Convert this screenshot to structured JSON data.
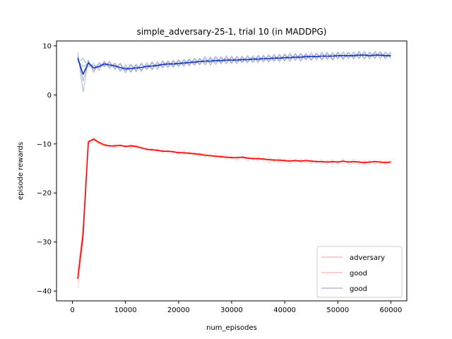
{
  "chart_data": {
    "type": "line",
    "title": "simple_adversary-25-1, trial 10 (in MADDPG)",
    "xlabel": "num_episodes",
    "ylabel": "episode rewards",
    "xlim": [
      -3000,
      63000
    ],
    "ylim": [
      -42,
      11
    ],
    "xticks": [
      0,
      10000,
      20000,
      30000,
      40000,
      50000,
      60000
    ],
    "xtick_labels": [
      "0",
      "10000",
      "20000",
      "30000",
      "40000",
      "50000",
      "60000"
    ],
    "yticks": [
      -40,
      -30,
      -20,
      -10,
      0,
      10
    ],
    "ytick_labels": [
      "−40",
      "−30",
      "−20",
      "−10",
      "0",
      "10"
    ],
    "grid": false,
    "legend_position": "lower right",
    "legend": [
      {
        "label": "adversary",
        "color": "#ff9999"
      },
      {
        "label": "good",
        "color": "#ff9999"
      },
      {
        "label": "good",
        "color": "#8899cc"
      }
    ],
    "x": [
      1000,
      2000,
      3000,
      4000,
      5000,
      6000,
      7000,
      8000,
      9000,
      10000,
      11000,
      12000,
      13000,
      14000,
      15000,
      16000,
      17000,
      18000,
      19000,
      20000,
      21000,
      22000,
      23000,
      24000,
      25000,
      26000,
      27000,
      28000,
      29000,
      30000,
      31000,
      32000,
      33000,
      34000,
      35000,
      36000,
      37000,
      38000,
      39000,
      40000,
      41000,
      42000,
      43000,
      44000,
      45000,
      46000,
      47000,
      48000,
      49000,
      50000,
      51000,
      52000,
      53000,
      54000,
      55000,
      56000,
      57000,
      58000,
      59000,
      60000
    ],
    "series": [
      {
        "group": "adversary",
        "color": "#ff0000",
        "kind": "mean",
        "values": [
          -37.5,
          -28.5,
          -9.6,
          -9.0,
          -9.7,
          -10.2,
          -10.4,
          -10.4,
          -10.3,
          -10.5,
          -10.4,
          -10.5,
          -10.8,
          -11.1,
          -11.2,
          -11.3,
          -11.5,
          -11.5,
          -11.6,
          -11.8,
          -11.8,
          -11.9,
          -12.0,
          -12.1,
          -12.3,
          -12.4,
          -12.5,
          -12.6,
          -12.7,
          -12.8,
          -12.8,
          -12.7,
          -12.9,
          -13.0,
          -13.0,
          -13.1,
          -13.2,
          -13.3,
          -13.3,
          -13.4,
          -13.5,
          -13.4,
          -13.5,
          -13.4,
          -13.5,
          -13.6,
          -13.6,
          -13.7,
          -13.6,
          -13.7,
          -13.5,
          -13.7,
          -13.6,
          -13.7,
          -13.8,
          -13.7,
          -13.6,
          -13.7,
          -13.8,
          -13.7
        ]
      },
      {
        "group": "adversary",
        "color": "#ffaaaa",
        "kind": "run",
        "values": [
          -39.5,
          -30.5,
          -10.0,
          -8.7,
          -9.9,
          -10.6,
          -10.2,
          -10.8,
          -10.6,
          -10.3,
          -10.9,
          -10.2,
          -11.1,
          -10.8,
          -11.6,
          -11.0,
          -11.9,
          -11.3,
          -12.0,
          -11.5,
          -12.2,
          -11.6,
          -12.4,
          -11.8,
          -12.7,
          -12.1,
          -12.9,
          -12.3,
          -13.1,
          -12.5,
          -13.3,
          -12.4,
          -13.4,
          -12.7,
          -13.5,
          -12.8,
          -13.8,
          -13.0,
          -13.8,
          -13.1,
          -14.1,
          -13.1,
          -14.0,
          -13.0,
          -14.0,
          -13.3,
          -14.2,
          -13.3,
          -14.1,
          -13.4,
          -14.0,
          -13.3,
          -14.2,
          -13.3,
          -14.4,
          -13.3,
          -14.2,
          -13.3,
          -14.3,
          -13.3
        ]
      },
      {
        "group": "adversary",
        "color": "#ffaaaa",
        "kind": "run",
        "values": [
          -36.0,
          -27.0,
          -9.3,
          -9.3,
          -9.5,
          -9.9,
          -10.7,
          -10.1,
          -10.0,
          -10.8,
          -10.0,
          -10.9,
          -10.5,
          -11.5,
          -10.8,
          -11.7,
          -11.1,
          -11.8,
          -11.3,
          -12.1,
          -11.4,
          -12.2,
          -11.7,
          -12.5,
          -11.9,
          -12.8,
          -12.1,
          -12.9,
          -12.3,
          -13.1,
          -12.4,
          -13.0,
          -12.5,
          -13.3,
          -12.6,
          -13.5,
          -12.7,
          -13.6,
          -12.9,
          -13.8,
          -13.0,
          -13.8,
          -13.1,
          -13.9,
          -13.1,
          -13.9,
          -13.2,
          -14.1,
          -13.2,
          -14.1,
          -13.1,
          -14.2,
          -13.1,
          -14.2,
          -13.3,
          -14.1,
          -13.2,
          -14.2,
          -13.4,
          -14.1
        ]
      },
      {
        "group": "adversary",
        "color": "#ffaaaa",
        "kind": "run",
        "values": [
          -38.0,
          -26.5,
          -10.1,
          -9.2,
          -10.0,
          -10.0,
          -10.3,
          -10.6,
          -10.2,
          -10.6,
          -10.2,
          -10.4,
          -10.9,
          -11.0,
          -11.3,
          -11.1,
          -11.6,
          -11.4,
          -11.7,
          -11.6,
          -12.0,
          -11.7,
          -12.2,
          -12.0,
          -12.4,
          -12.2,
          -12.6,
          -12.4,
          -12.8,
          -12.6,
          -12.9,
          -12.6,
          -13.0,
          -12.8,
          -13.2,
          -12.9,
          -13.4,
          -13.1,
          -13.5,
          -13.2,
          -13.7,
          -13.2,
          -13.7,
          -13.3,
          -13.8,
          -13.4,
          -13.8,
          -13.5,
          -13.8,
          -13.5,
          -13.7,
          -13.5,
          -13.8,
          -13.5,
          -14.0,
          -13.5,
          -13.8,
          -13.6,
          -13.9,
          -13.5
        ]
      },
      {
        "group": "adversary",
        "color": "#ffaaaa",
        "kind": "run",
        "values": [
          -36.8,
          -29.8,
          -9.5,
          -8.9,
          -9.6,
          -10.3,
          -10.5,
          -10.3,
          -10.4,
          -10.4,
          -10.6,
          -10.6,
          -10.7,
          -11.2,
          -11.1,
          -11.4,
          -11.4,
          -11.6,
          -11.5,
          -11.9,
          -11.7,
          -12.0,
          -11.9,
          -12.2,
          -12.2,
          -12.5,
          -12.4,
          -12.7,
          -12.6,
          -12.9,
          -12.7,
          -12.8,
          -12.8,
          -13.1,
          -12.9,
          -13.2,
          -13.1,
          -13.4,
          -13.2,
          -13.5,
          -13.4,
          -13.5,
          -13.4,
          -13.5,
          -13.4,
          -13.7,
          -13.5,
          -13.8,
          -13.5,
          -13.8,
          -13.4,
          -13.8,
          -13.5,
          -13.8,
          -13.6,
          -13.8,
          -13.5,
          -13.8,
          -13.7,
          -13.8
        ]
      },
      {
        "group": "good",
        "color": "#1133bb",
        "kind": "mean",
        "values": [
          7.5,
          4.2,
          6.5,
          5.5,
          5.8,
          6.3,
          6.1,
          5.9,
          5.6,
          5.3,
          5.4,
          5.5,
          5.6,
          5.8,
          5.9,
          6.0,
          6.2,
          6.3,
          6.3,
          6.4,
          6.5,
          6.6,
          6.7,
          6.8,
          6.9,
          6.9,
          7.0,
          7.0,
          7.1,
          7.1,
          7.1,
          7.2,
          7.2,
          7.3,
          7.3,
          7.4,
          7.4,
          7.5,
          7.5,
          7.6,
          7.6,
          7.7,
          7.7,
          7.8,
          7.8,
          7.8,
          7.9,
          7.9,
          7.9,
          8.0,
          8.0,
          8.0,
          8.0,
          8.1,
          8.1,
          8.0,
          8.1,
          8.1,
          8.0,
          8.0
        ]
      },
      {
        "group": "good",
        "color": "#6677bb",
        "kind": "run",
        "values": [
          8.7,
          0.6,
          7.1,
          4.6,
          6.6,
          5.7,
          6.9,
          5.2,
          6.5,
          4.5,
          6.3,
          4.7,
          6.5,
          5.1,
          6.8,
          5.2,
          7.0,
          5.6,
          7.1,
          5.7,
          7.3,
          5.9,
          7.5,
          6.1,
          7.8,
          6.1,
          7.9,
          6.3,
          8.0,
          6.4,
          7.9,
          6.5,
          8.0,
          6.6,
          8.1,
          6.7,
          8.2,
          6.8,
          8.3,
          6.9,
          8.5,
          7.0,
          8.5,
          7.1,
          8.6,
          7.1,
          8.7,
          7.2,
          8.7,
          7.3,
          8.8,
          7.3,
          8.8,
          7.4,
          8.9,
          7.3,
          8.9,
          7.4,
          8.8,
          7.3
        ]
      },
      {
        "group": "good",
        "color": "#6677bb",
        "kind": "run",
        "values": [
          6.5,
          7.5,
          5.7,
          6.4,
          5.0,
          6.9,
          5.4,
          6.5,
          4.8,
          6.1,
          4.6,
          6.3,
          4.8,
          6.6,
          5.1,
          6.8,
          5.5,
          7.0,
          5.6,
          7.2,
          5.8,
          7.4,
          6.0,
          7.5,
          6.1,
          7.7,
          6.2,
          7.8,
          6.3,
          7.9,
          6.4,
          7.9,
          6.5,
          8.0,
          6.6,
          8.1,
          6.7,
          8.3,
          6.7,
          8.4,
          6.8,
          8.5,
          6.9,
          8.5,
          7.0,
          8.6,
          7.1,
          8.7,
          7.1,
          8.8,
          7.2,
          8.8,
          7.3,
          8.9,
          7.3,
          8.8,
          7.4,
          8.9,
          7.3,
          8.8
        ]
      },
      {
        "group": "good",
        "color": "#6677bb",
        "kind": "run",
        "values": [
          7.9,
          2.8,
          6.9,
          5.0,
          6.3,
          5.9,
          6.6,
          5.5,
          6.2,
          4.9,
          6.0,
          5.0,
          6.2,
          5.4,
          6.5,
          5.6,
          6.7,
          5.8,
          6.8,
          6.0,
          7.0,
          6.2,
          7.2,
          6.3,
          7.4,
          6.5,
          7.5,
          6.6,
          7.6,
          6.7,
          7.6,
          6.8,
          7.7,
          6.9,
          7.8,
          7.0,
          7.9,
          7.1,
          8.0,
          7.2,
          8.1,
          7.3,
          8.2,
          7.4,
          8.2,
          7.5,
          8.3,
          7.5,
          8.3,
          7.6,
          8.4,
          7.7,
          8.4,
          7.7,
          8.5,
          7.7,
          8.5,
          7.8,
          8.4,
          7.7
        ]
      },
      {
        "group": "good",
        "color": "#6677bb",
        "kind": "run",
        "values": [
          7.0,
          5.8,
          6.3,
          6.0,
          5.5,
          6.6,
          5.7,
          6.3,
          5.1,
          5.7,
          4.9,
          6.0,
          5.1,
          6.2,
          5.4,
          6.4,
          5.8,
          6.7,
          5.9,
          6.9,
          6.1,
          7.1,
          6.3,
          7.3,
          6.5,
          7.4,
          6.6,
          7.5,
          6.7,
          7.6,
          6.7,
          7.6,
          6.8,
          7.7,
          6.9,
          7.9,
          7.0,
          8.0,
          7.1,
          8.1,
          7.2,
          8.2,
          7.3,
          8.2,
          7.3,
          8.3,
          7.4,
          8.4,
          7.4,
          8.5,
          7.5,
          8.5,
          7.6,
          8.6,
          7.6,
          8.5,
          7.7,
          8.6,
          7.6,
          8.5
        ]
      }
    ]
  }
}
